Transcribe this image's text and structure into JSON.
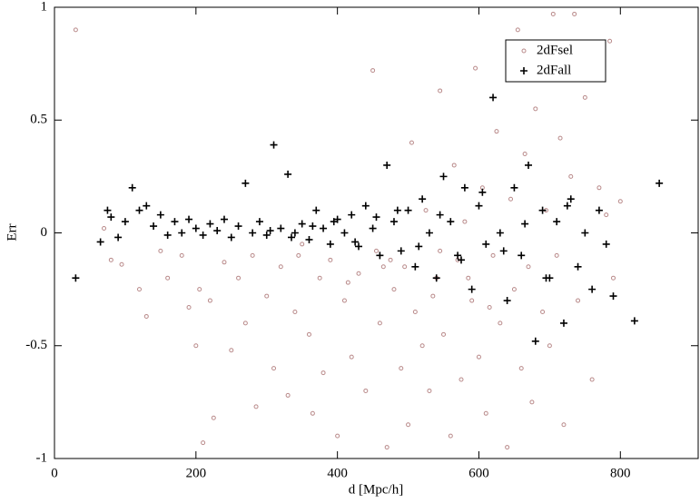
{
  "chart_data": {
    "type": "scatter",
    "xlabel": "d [Mpc/h]",
    "ylabel": "Err",
    "xlim": [
      0,
      910
    ],
    "ylim": [
      -1,
      1
    ],
    "xticks": [
      0,
      200,
      400,
      600,
      800
    ],
    "yticks": [
      -1,
      -0.5,
      0,
      0.5,
      1
    ],
    "legend": "top-right",
    "series": [
      {
        "name": "2dFsel",
        "color": "#b98a8a",
        "marker": "circle",
        "x": [
          30,
          70,
          80,
          95,
          120,
          130,
          150,
          160,
          180,
          190,
          200,
          205,
          210,
          220,
          225,
          240,
          250,
          260,
          270,
          280,
          285,
          300,
          310,
          320,
          330,
          340,
          350,
          360,
          365,
          375,
          380,
          390,
          400,
          410,
          420,
          430,
          440,
          450,
          455,
          460,
          470,
          480,
          490,
          495,
          500,
          505,
          510,
          520,
          525,
          530,
          540,
          545,
          550,
          560,
          565,
          570,
          575,
          580,
          590,
          595,
          600,
          605,
          610,
          620,
          625,
          630,
          640,
          645,
          650,
          655,
          660,
          665,
          670,
          675,
          680,
          690,
          695,
          700,
          705,
          710,
          715,
          720,
          730,
          735,
          740,
          750,
          760,
          770,
          780,
          785,
          790,
          800,
          345,
          415,
          465,
          535,
          585,
          615,
          545,
          475
        ],
        "y": [
          0.9,
          0.02,
          -0.12,
          -0.14,
          -0.25,
          -0.37,
          -0.08,
          -0.2,
          -0.1,
          -0.33,
          -0.5,
          -0.25,
          -0.93,
          -0.3,
          -0.82,
          -0.13,
          -0.52,
          -0.2,
          -0.4,
          -0.1,
          -0.77,
          -0.28,
          -0.6,
          -0.15,
          -0.72,
          -0.35,
          -0.05,
          -0.45,
          -0.8,
          -0.2,
          -0.62,
          -0.12,
          -0.9,
          -0.3,
          -0.55,
          -0.18,
          -0.7,
          0.72,
          -0.08,
          -0.4,
          -0.95,
          -0.25,
          -0.6,
          -0.15,
          -0.85,
          0.4,
          -0.35,
          -0.5,
          0.1,
          -0.7,
          -0.2,
          0.63,
          -0.45,
          -0.9,
          0.3,
          -0.12,
          -0.65,
          0.05,
          -0.3,
          0.73,
          -0.55,
          0.2,
          -0.8,
          -0.1,
          0.45,
          -0.4,
          -0.95,
          0.15,
          -0.25,
          0.9,
          -0.6,
          0.35,
          -0.15,
          -0.75,
          0.55,
          -0.35,
          0.1,
          -0.5,
          0.97,
          -0.1,
          0.42,
          -0.85,
          0.25,
          0.97,
          -0.3,
          0.6,
          -0.65,
          0.2,
          0.08,
          0.85,
          -0.2,
          0.14,
          -0.1,
          -0.22,
          -0.15,
          -0.28,
          -0.2,
          -0.33,
          -0.08,
          -0.12
        ]
      },
      {
        "name": "2dFall",
        "color": "#000000",
        "marker": "plus",
        "x": [
          30,
          65,
          75,
          80,
          90,
          100,
          110,
          120,
          130,
          140,
          150,
          160,
          170,
          180,
          190,
          200,
          210,
          220,
          230,
          240,
          250,
          260,
          270,
          280,
          290,
          300,
          310,
          320,
          330,
          340,
          350,
          360,
          370,
          380,
          390,
          400,
          410,
          420,
          430,
          440,
          450,
          460,
          470,
          480,
          490,
          500,
          510,
          520,
          530,
          540,
          550,
          560,
          570,
          580,
          590,
          600,
          610,
          620,
          630,
          640,
          650,
          660,
          670,
          680,
          690,
          700,
          710,
          720,
          730,
          740,
          750,
          760,
          770,
          780,
          790,
          820,
          855,
          305,
          335,
          365,
          395,
          425,
          455,
          485,
          515,
          545,
          575,
          605,
          635,
          665,
          695,
          725
        ],
        "y": [
          -0.2,
          -0.04,
          0.1,
          0.07,
          -0.02,
          0.05,
          0.2,
          0.1,
          0.12,
          0.03,
          0.08,
          -0.01,
          0.05,
          0.0,
          0.06,
          0.02,
          -0.01,
          0.04,
          0.01,
          0.06,
          -0.02,
          0.03,
          0.22,
          0.0,
          0.05,
          -0.01,
          0.39,
          0.02,
          0.26,
          0.0,
          0.04,
          -0.03,
          0.1,
          0.02,
          -0.05,
          0.06,
          0.0,
          0.08,
          -0.06,
          0.12,
          0.02,
          -0.1,
          0.3,
          0.05,
          -0.08,
          0.1,
          -0.15,
          0.15,
          0.0,
          -0.2,
          0.25,
          0.05,
          -0.1,
          0.2,
          -0.25,
          0.12,
          -0.05,
          0.6,
          0.0,
          -0.3,
          0.2,
          -0.1,
          0.3,
          -0.48,
          0.1,
          -0.2,
          0.05,
          -0.4,
          0.15,
          -0.15,
          0.0,
          -0.25,
          0.1,
          -0.05,
          -0.28,
          -0.39,
          0.22,
          0.01,
          -0.02,
          0.03,
          0.05,
          -0.04,
          0.07,
          0.1,
          -0.06,
          0.08,
          -0.12,
          0.18,
          -0.08,
          0.04,
          -0.2,
          0.12
        ]
      }
    ]
  }
}
